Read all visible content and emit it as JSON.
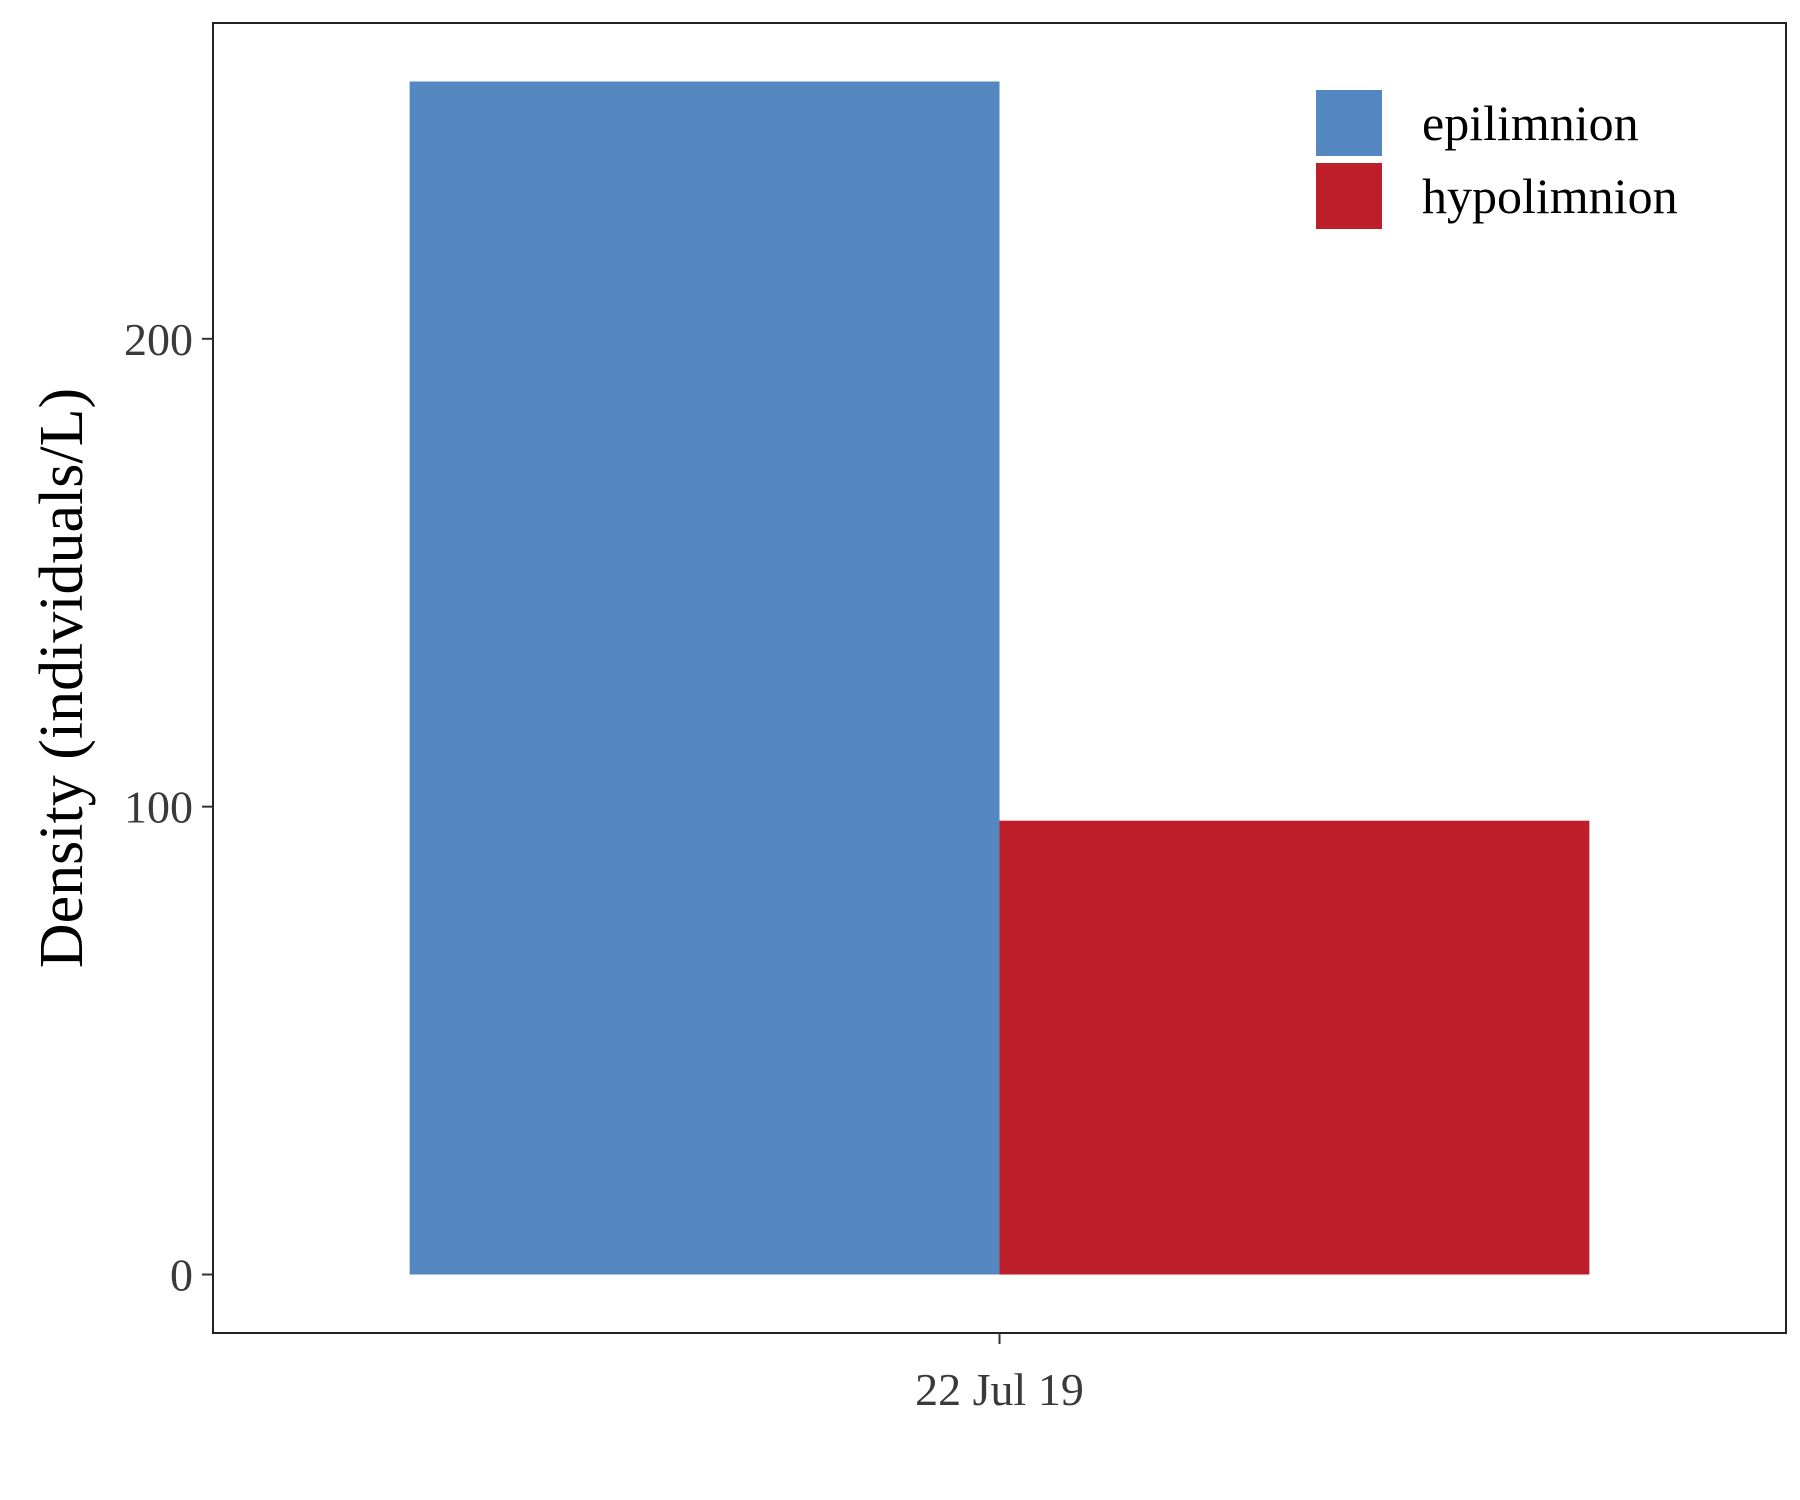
{
  "chart_data": {
    "type": "bar",
    "categories": [
      "22 Jul 19"
    ],
    "series": [
      {
        "name": "epilimnion",
        "values": [
          255
        ],
        "color": "#5588C0"
      },
      {
        "name": "hypolimnion",
        "values": [
          97
        ],
        "color": "#BE1E2A"
      }
    ],
    "xlabel": "",
    "ylabel": "Density (individuals/L)",
    "ylim": [
      -12.5,
      267.5
    ],
    "yticks": [
      0,
      100,
      200
    ],
    "legend": {
      "position": "top-right"
    },
    "grid": false
  }
}
